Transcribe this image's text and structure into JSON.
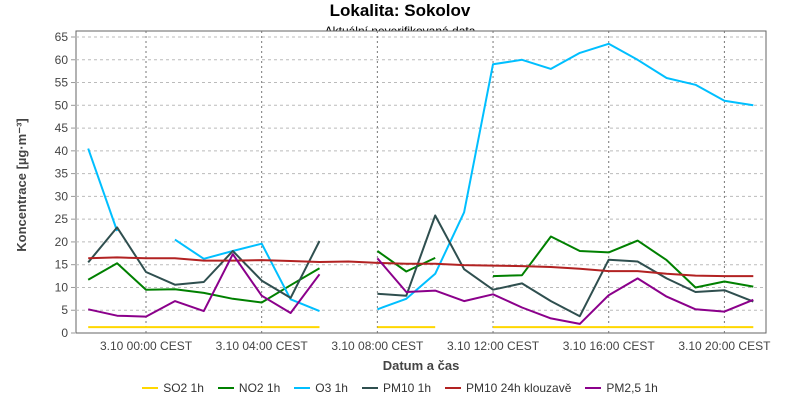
{
  "chart_data": {
    "type": "line",
    "title": "Lokalita: Sokolov",
    "subtitle": "Aktuální neverifikovaná data",
    "xlabel": "Datum a čas",
    "ylabel": "Koncentrace [µg·m⁻³]",
    "ylim": [
      0,
      65
    ],
    "yticks": [
      0,
      5,
      10,
      15,
      20,
      25,
      30,
      35,
      40,
      45,
      50,
      55,
      60,
      65
    ],
    "x_unit": "hours from 3.10 00:00 CEST",
    "x": [
      -2,
      -1,
      0,
      1,
      2,
      3,
      4,
      5,
      6,
      7,
      8,
      9,
      10,
      11,
      12,
      13,
      14,
      15,
      16,
      17,
      18,
      19,
      20,
      21
    ],
    "xticks": [
      {
        "x": 0,
        "label": "3.10 00:00 CEST"
      },
      {
        "x": 4,
        "label": "3.10 04:00 CEST"
      },
      {
        "x": 8,
        "label": "3.10 08:00 CEST"
      },
      {
        "x": 12,
        "label": "3.10 12:00 CEST"
      },
      {
        "x": 16,
        "label": "3.10 16:00 CEST"
      },
      {
        "x": 20,
        "label": "3.10 20:00 CEST"
      }
    ],
    "grid": true,
    "legend_position": "bottom",
    "series": [
      {
        "name": "SO2 1h",
        "color": "#ffd700",
        "values": [
          1.3,
          1.3,
          1.3,
          1.3,
          1.3,
          1.3,
          1.3,
          1.3,
          1.3,
          null,
          1.3,
          1.3,
          1.3,
          null,
          1.3,
          1.3,
          1.3,
          1.3,
          1.3,
          1.3,
          1.3,
          1.3,
          1.3,
          1.3
        ]
      },
      {
        "name": "NO2 1h",
        "color": "#008000",
        "values": [
          11.7,
          15.3,
          9.5,
          9.6,
          8.8,
          7.5,
          6.7,
          10.5,
          14.2,
          null,
          18,
          13.5,
          16.5,
          null,
          12.5,
          12.7,
          21.2,
          18,
          17.7,
          20.3,
          16,
          10,
          11.3,
          10.2
        ]
      },
      {
        "name": "O3 1h",
        "color": "#00bfff",
        "values": [
          40.5,
          22.4,
          null,
          20.5,
          16.3,
          18,
          19.6,
          7.4,
          4.8,
          null,
          5.2,
          7.5,
          13,
          26.5,
          59,
          60,
          58,
          61.5,
          63.5,
          60,
          56,
          54.5,
          51,
          50
        ]
      },
      {
        "name": "PM10 1h",
        "color": "#2f4f4f",
        "values": [
          15.5,
          23.2,
          13.4,
          10.6,
          11.2,
          18,
          11.5,
          7.7,
          20.2,
          null,
          8.6,
          8.2,
          25.8,
          14,
          9.5,
          10.9,
          7,
          3.7,
          16.1,
          15.7,
          12,
          9,
          9.4,
          6.9
        ]
      },
      {
        "name": "PM10 24h klouzavě",
        "color": "#b22222",
        "values": [
          16.4,
          16.6,
          16.4,
          16.4,
          15.9,
          15.9,
          16,
          15.8,
          15.6,
          15.7,
          15.4,
          15.2,
          15.2,
          14.9,
          14.8,
          14.7,
          14.5,
          14.1,
          13.6,
          13.6,
          13,
          12.6,
          12.5,
          12.5
        ]
      },
      {
        "name": "PM2,5 1h",
        "color": "#8b008b",
        "values": [
          5.2,
          3.8,
          3.6,
          7,
          4.8,
          17.3,
          8.2,
          4.4,
          12.9,
          null,
          16.4,
          9,
          9.3,
          7,
          8.5,
          5.6,
          3.2,
          2,
          8.3,
          12,
          8,
          5.2,
          4.7,
          7.3
        ]
      }
    ]
  }
}
